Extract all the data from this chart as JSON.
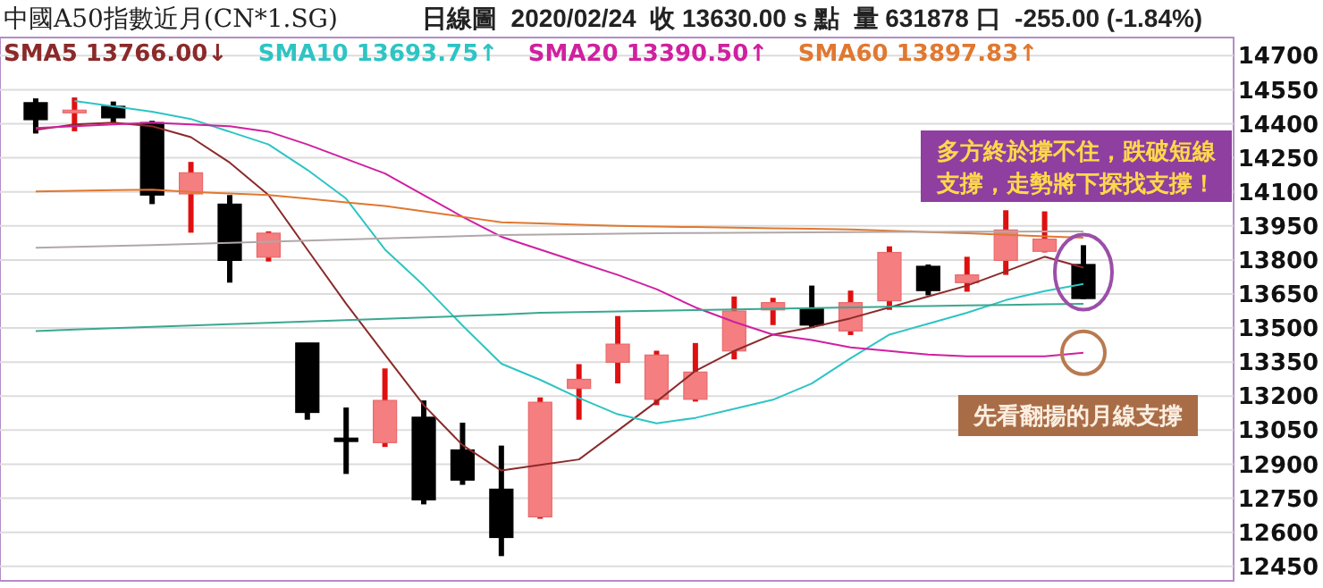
{
  "chart_data": {
    "type": "candlestick",
    "title": "中國A50指數近月(CN*1.SG)",
    "subtitle": "日線圖  2020/02/24  收 13630.00 s 點  量 631878 口  -255.00 (-1.84%)",
    "categories": [
      null,
      null,
      null,
      null,
      null,
      null,
      null,
      null,
      null,
      null,
      null,
      null,
      null,
      null,
      null,
      null,
      null,
      null,
      null,
      null,
      null,
      null,
      null,
      null,
      null,
      null,
      null,
      null
    ],
    "ohlc": [
      [
        14493,
        14512,
        14357,
        14418
      ],
      [
        14450,
        14516,
        14367,
        14460
      ],
      [
        14477,
        14498,
        14405,
        14426
      ],
      [
        14405,
        14413,
        14046,
        14086
      ],
      [
        14091,
        14232,
        13920,
        14184
      ],
      [
        14046,
        14086,
        13700,
        13798
      ],
      [
        13812,
        13926,
        13793,
        13918
      ],
      [
        13434,
        13434,
        13096,
        13128
      ],
      [
        13015,
        13150,
        12857,
        13000
      ],
      [
        12995,
        13322,
        12976,
        13181
      ],
      [
        13107,
        13181,
        12723,
        12743
      ],
      [
        12963,
        13083,
        12809,
        12830
      ],
      [
        12790,
        12982,
        12495,
        12577
      ],
      [
        12668,
        13194,
        12660,
        13173
      ],
      [
        13234,
        13341,
        13096,
        13274
      ],
      [
        13349,
        13553,
        13256,
        13429
      ],
      [
        13186,
        13400,
        13160,
        13381
      ],
      [
        13186,
        13434,
        13176,
        13306
      ],
      [
        13399,
        13639,
        13362,
        13575
      ],
      [
        13580,
        13633,
        13513,
        13612
      ],
      [
        13585,
        13687,
        13500,
        13513
      ],
      [
        13487,
        13665,
        13469,
        13612
      ],
      [
        13620,
        13860,
        13580,
        13833
      ],
      [
        13772,
        13780,
        13644,
        13665
      ],
      [
        13700,
        13814,
        13660,
        13734
      ],
      [
        13798,
        14019,
        13734,
        13932
      ],
      [
        13838,
        14014,
        13833,
        13892
      ],
      [
        13780,
        13865,
        13628,
        13630
      ]
    ],
    "series": [
      {
        "name": "SMA5 13766.00↓",
        "color": "#8b2a2a",
        "type": "line",
        "values": [
          14373,
          14397,
          14405,
          14389,
          14341,
          14229,
          14086,
          13846,
          13607,
          13383,
          13160,
          12984,
          12872,
          12897,
          12921,
          13048,
          13176,
          13311,
          13399,
          13471,
          13503,
          13543,
          13591,
          13639,
          13687,
          13750,
          13814,
          13766
        ]
      },
      {
        "name": "SMA10 13693.75↑",
        "color": "#2ec4c4",
        "type": "line",
        "values": [
          null,
          14500,
          14477,
          14453,
          14421,
          14365,
          14309,
          14197,
          14070,
          13846,
          13687,
          13511,
          13343,
          13272,
          13192,
          13120,
          13080,
          13104,
          13144,
          13184,
          13256,
          13367,
          13471,
          13519,
          13567,
          13623,
          13663,
          13694
        ]
      },
      {
        "name": "SMA20 13390.50↑",
        "color": "#d020a0",
        "type": "line",
        "values": [
          14381,
          14389,
          14397,
          14405,
          14397,
          14389,
          14365,
          14309,
          14245,
          14181,
          14086,
          13990,
          13902,
          13846,
          13790,
          13734,
          13671,
          13591,
          13527,
          13471,
          13447,
          13415,
          13399,
          13383,
          13375,
          13375,
          13375,
          13391
        ]
      },
      {
        "name": "SMA60 13897.83↑",
        "color": "#e07830",
        "type": "line",
        "values": [
          14102,
          14105,
          14108,
          14110,
          14100,
          14093,
          14086,
          14070,
          14054,
          14038,
          14014,
          13990,
          13966,
          13961,
          13955,
          13950,
          13947,
          13945,
          13942,
          13939,
          13937,
          13934,
          13929,
          13923,
          13918,
          13911,
          13904,
          13898
        ]
      },
      {
        "color": "#b0a8a8",
        "type": "line",
        "values": [
          13854,
          13858,
          13862,
          13866,
          13870,
          13875,
          13880,
          13885,
          13890,
          13895,
          13900,
          13905,
          13910,
          13912,
          13914,
          13916,
          13918,
          13919,
          13920,
          13921,
          13922,
          13923,
          13924,
          13924,
          13925,
          13925,
          13926,
          13926
        ]
      },
      {
        "color": "#3aa890",
        "type": "line",
        "values": [
          13487,
          13493,
          13499,
          13505,
          13511,
          13517,
          13523,
          13529,
          13535,
          13541,
          13547,
          13553,
          13559,
          13567,
          13570,
          13573,
          13576,
          13579,
          13582,
          13585,
          13588,
          13591,
          13594,
          13597,
          13600,
          13602,
          13605,
          13607
        ]
      }
    ],
    "ylim": [
      12386,
      14780
    ],
    "yticks": [
      12450,
      12600,
      12750,
      12900,
      13050,
      13200,
      13350,
      13500,
      13650,
      13800,
      13950,
      14100,
      14250,
      14400,
      14550,
      14700
    ],
    "grid": "y",
    "legend": "top left",
    "tick_labels": "y",
    "annotations": [
      "多方終於撐不住，跌破短線支撐，走勢將下探找支撐！",
      "先看翻揚的月線支撐"
    ]
  }
}
